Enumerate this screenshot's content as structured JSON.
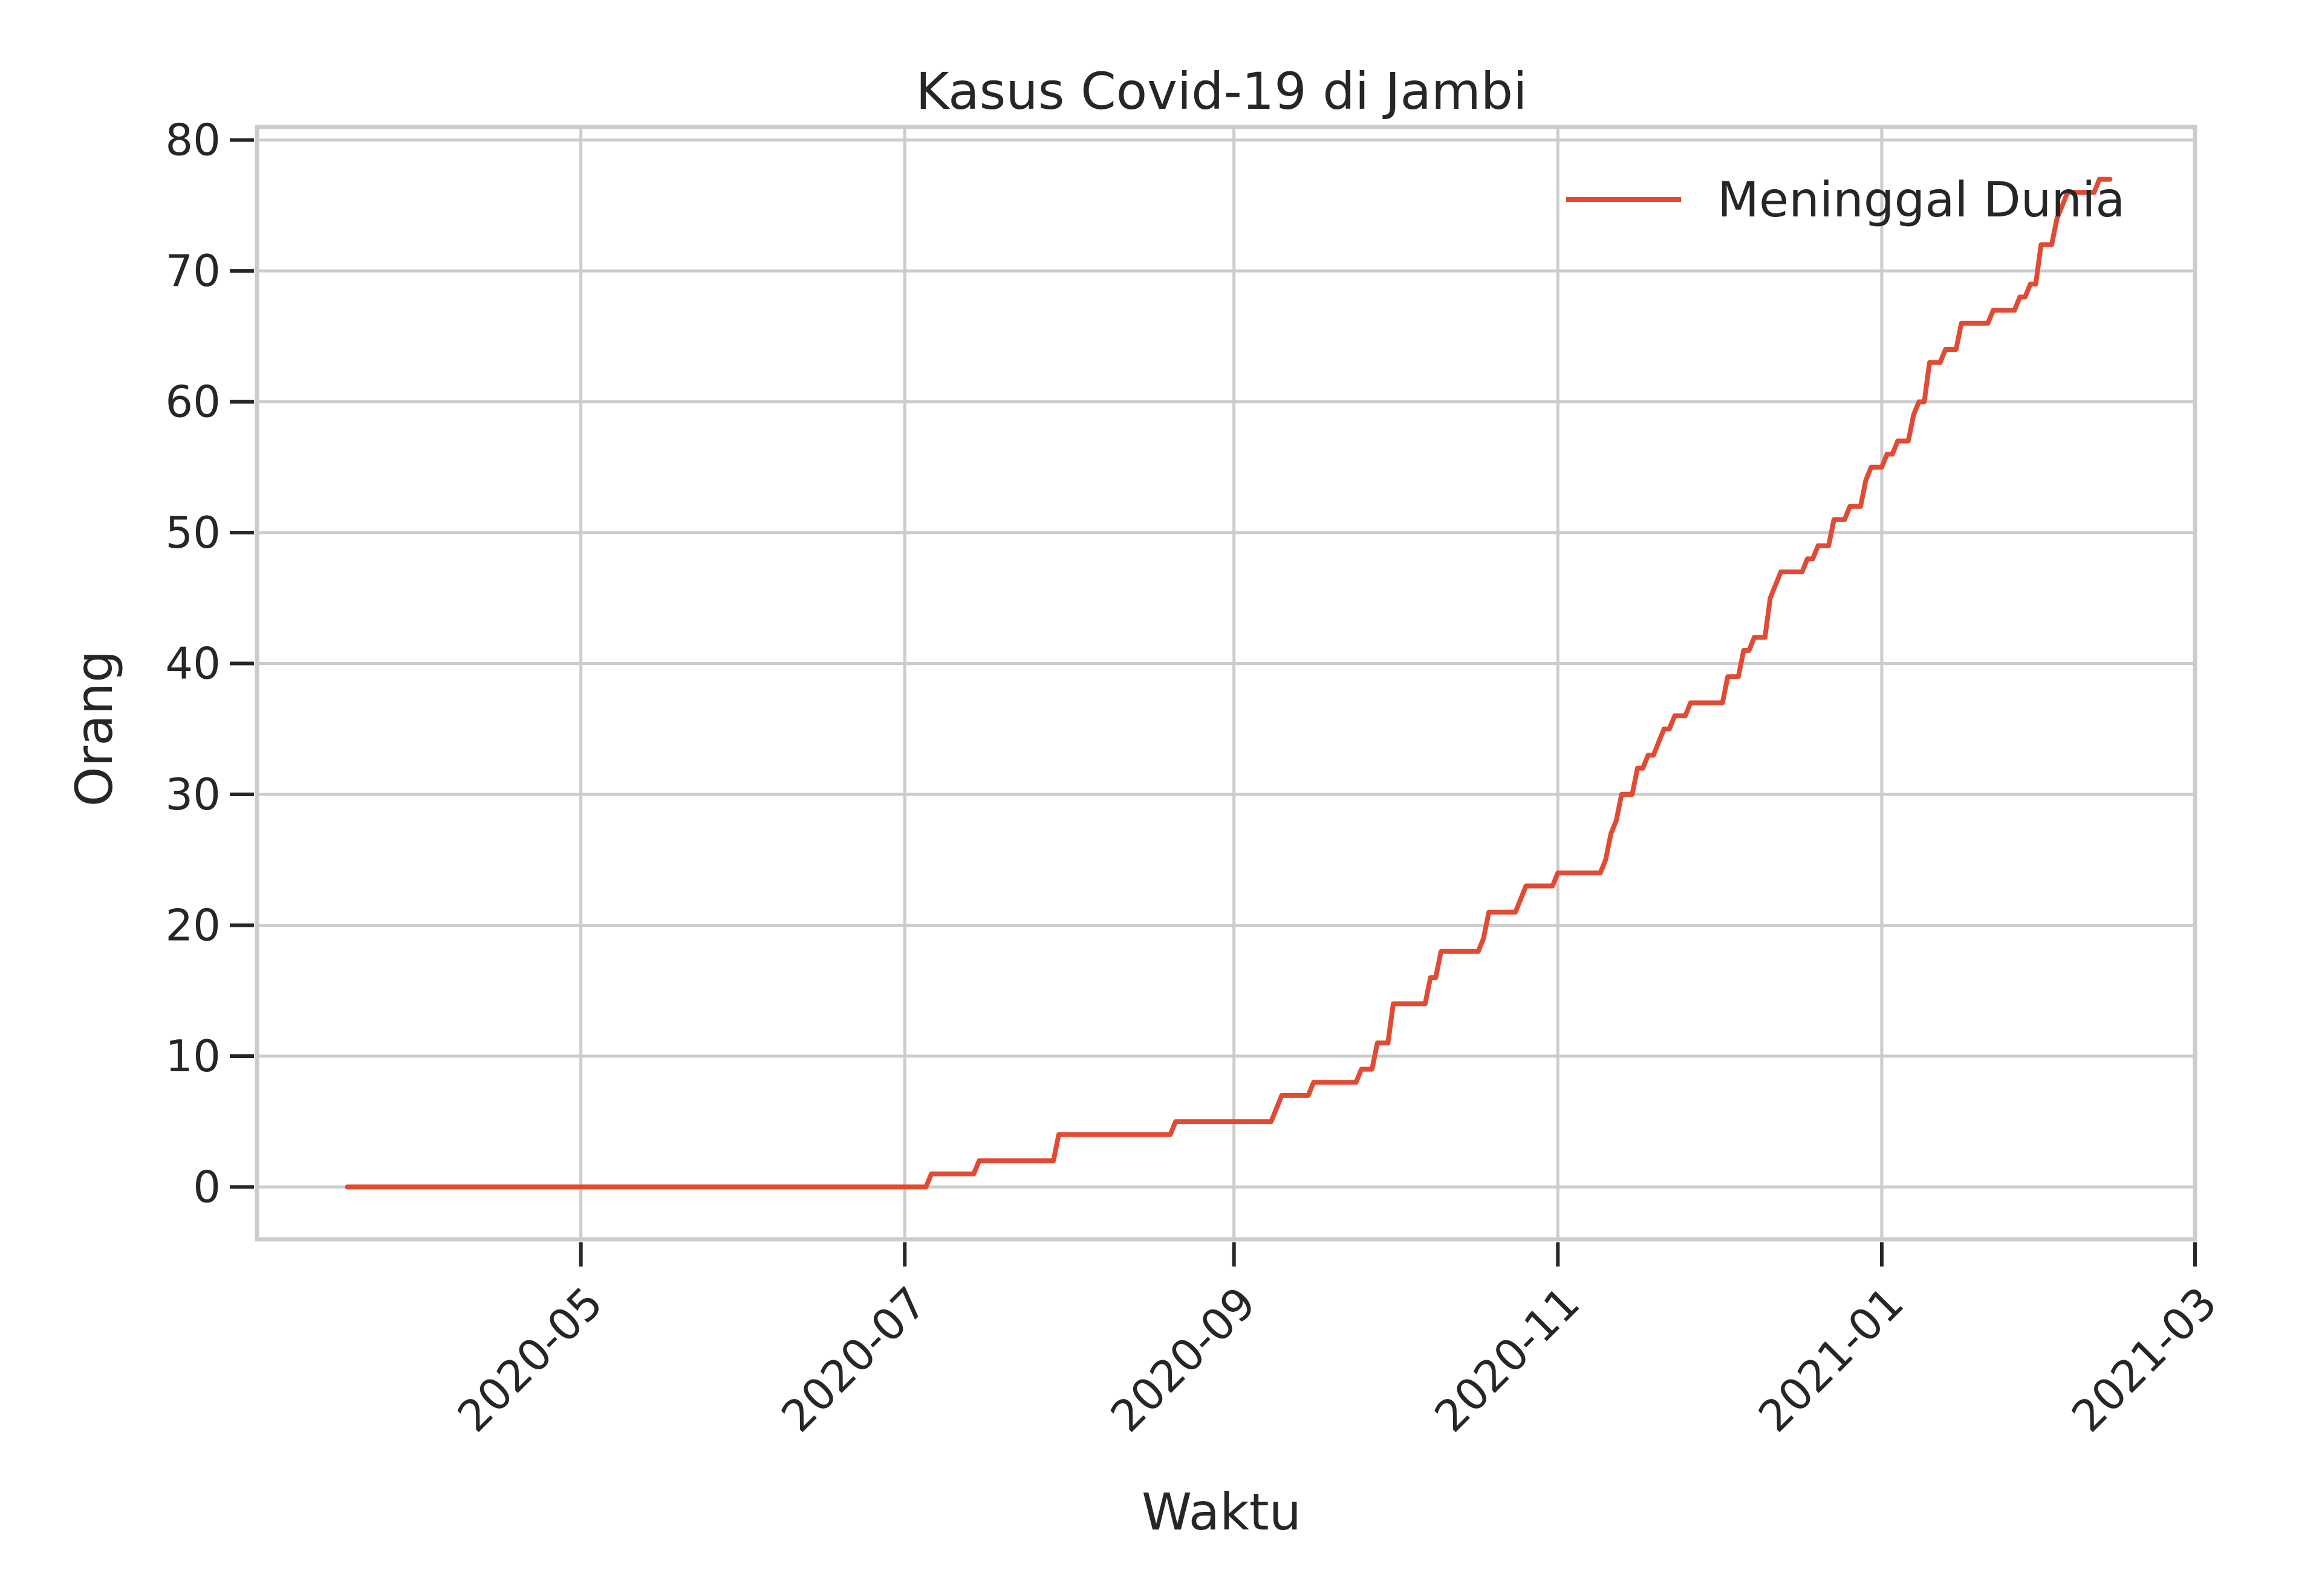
{
  "chart_data": {
    "type": "line",
    "title": "Kasus Covid-19 di Jambi",
    "xlabel": "Waktu",
    "ylabel": "Orang",
    "xlim": [
      "2020-03-01",
      "2021-03-01"
    ],
    "ylim": [
      -4,
      81
    ],
    "x_ticks": [
      "2020-05",
      "2020-07",
      "2020-09",
      "2020-11",
      "2021-01",
      "2021-03"
    ],
    "x_tick_dates": [
      "2020-05-01",
      "2020-07-01",
      "2020-09-01",
      "2020-11-01",
      "2021-01-01",
      "2021-03-01"
    ],
    "y_ticks": [
      0,
      10,
      20,
      30,
      40,
      50,
      60,
      70,
      80
    ],
    "grid": true,
    "legend": {
      "placement": "top-right"
    },
    "series": [
      {
        "name": "Meninggal Dunia",
        "color": "#e24a33",
        "points": [
          [
            "2020-03-18",
            0
          ],
          [
            "2020-07-01",
            0
          ],
          [
            "2020-07-05",
            0
          ],
          [
            "2020-07-06",
            1
          ],
          [
            "2020-07-14",
            1
          ],
          [
            "2020-07-15",
            2
          ],
          [
            "2020-07-29",
            2
          ],
          [
            "2020-07-30",
            4
          ],
          [
            "2020-08-20",
            4
          ],
          [
            "2020-08-21",
            5
          ],
          [
            "2020-09-08",
            5
          ],
          [
            "2020-09-10",
            7
          ],
          [
            "2020-09-15",
            7
          ],
          [
            "2020-09-16",
            8
          ],
          [
            "2020-09-24",
            8
          ],
          [
            "2020-09-25",
            9
          ],
          [
            "2020-09-27",
            9
          ],
          [
            "2020-09-28",
            11
          ],
          [
            "2020-09-30",
            11
          ],
          [
            "2020-10-01",
            14
          ],
          [
            "2020-10-07",
            14
          ],
          [
            "2020-10-08",
            16
          ],
          [
            "2020-10-09",
            16
          ],
          [
            "2020-10-10",
            18
          ],
          [
            "2020-10-17",
            18
          ],
          [
            "2020-10-18",
            19
          ],
          [
            "2020-10-19",
            21
          ],
          [
            "2020-10-24",
            21
          ],
          [
            "2020-10-26",
            23
          ],
          [
            "2020-10-31",
            23
          ],
          [
            "2020-11-01",
            24
          ],
          [
            "2020-11-09",
            24
          ],
          [
            "2020-11-10",
            25
          ],
          [
            "2020-11-11",
            27
          ],
          [
            "2020-11-12",
            28
          ],
          [
            "2020-11-13",
            30
          ],
          [
            "2020-11-15",
            30
          ],
          [
            "2020-11-16",
            32
          ],
          [
            "2020-11-17",
            32
          ],
          [
            "2020-11-18",
            33
          ],
          [
            "2020-11-19",
            33
          ],
          [
            "2020-11-20",
            34
          ],
          [
            "2020-11-21",
            35
          ],
          [
            "2020-11-22",
            35
          ],
          [
            "2020-11-23",
            36
          ],
          [
            "2020-11-25",
            36
          ],
          [
            "2020-11-26",
            37
          ],
          [
            "2020-12-02",
            37
          ],
          [
            "2020-12-03",
            39
          ],
          [
            "2020-12-05",
            39
          ],
          [
            "2020-12-06",
            41
          ],
          [
            "2020-12-07",
            41
          ],
          [
            "2020-12-08",
            42
          ],
          [
            "2020-12-10",
            42
          ],
          [
            "2020-12-11",
            45
          ],
          [
            "2020-12-12",
            46
          ],
          [
            "2020-12-13",
            47
          ],
          [
            "2020-12-17",
            47
          ],
          [
            "2020-12-18",
            48
          ],
          [
            "2020-12-19",
            48
          ],
          [
            "2020-12-20",
            49
          ],
          [
            "2020-12-22",
            49
          ],
          [
            "2020-12-23",
            51
          ],
          [
            "2020-12-25",
            51
          ],
          [
            "2020-12-26",
            52
          ],
          [
            "2020-12-28",
            52
          ],
          [
            "2020-12-29",
            54
          ],
          [
            "2020-12-30",
            55
          ],
          [
            "2021-01-01",
            55
          ],
          [
            "2021-01-02",
            56
          ],
          [
            "2021-01-03",
            56
          ],
          [
            "2021-01-04",
            57
          ],
          [
            "2021-01-06",
            57
          ],
          [
            "2021-01-07",
            59
          ],
          [
            "2021-01-08",
            60
          ],
          [
            "2021-01-09",
            60
          ],
          [
            "2021-01-10",
            63
          ],
          [
            "2021-01-12",
            63
          ],
          [
            "2021-01-13",
            64
          ],
          [
            "2021-01-15",
            64
          ],
          [
            "2021-01-16",
            66
          ],
          [
            "2021-01-21",
            66
          ],
          [
            "2021-01-22",
            67
          ],
          [
            "2021-01-26",
            67
          ],
          [
            "2021-01-27",
            68
          ],
          [
            "2021-01-28",
            68
          ],
          [
            "2021-01-29",
            69
          ],
          [
            "2021-01-30",
            69
          ],
          [
            "2021-01-31",
            72
          ],
          [
            "2021-02-02",
            72
          ],
          [
            "2021-02-03",
            74
          ],
          [
            "2021-02-04",
            75
          ],
          [
            "2021-02-05",
            76
          ],
          [
            "2021-02-10",
            76
          ],
          [
            "2021-02-11",
            77
          ],
          [
            "2021-02-13",
            77
          ]
        ]
      }
    ]
  }
}
